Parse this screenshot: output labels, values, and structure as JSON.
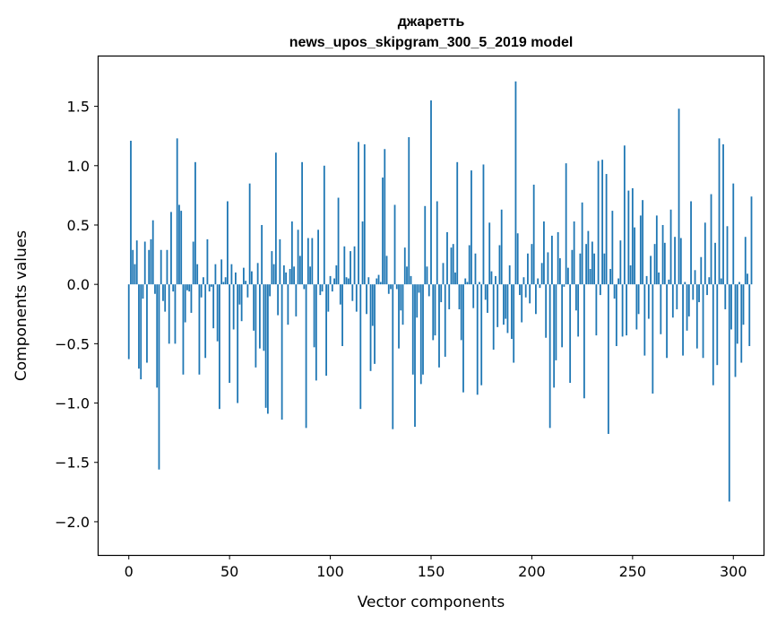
{
  "chart_data": {
    "type": "bar",
    "title_line1": "джаретть",
    "title_line2": "news_upos_skipgram_300_5_2019 model",
    "xlabel": "Vector components",
    "ylabel": "Components values",
    "xlim": [
      -15,
      315
    ],
    "ylim": [
      -2.28,
      1.92
    ],
    "xticks": [
      0,
      50,
      100,
      150,
      200,
      250,
      300
    ],
    "xtick_labels": [
      "0",
      "50",
      "100",
      "150",
      "200",
      "250",
      "300"
    ],
    "yticks": [
      -2.0,
      -1.5,
      -1.0,
      -0.5,
      0.0,
      0.5,
      1.0,
      1.5
    ],
    "ytick_labels": [
      "−2.0",
      "−1.5",
      "−1.0",
      "−0.5",
      "0.0",
      "0.5",
      "1.0",
      "1.5"
    ],
    "bar_color": "#1f77b4",
    "values": [
      -0.63,
      1.21,
      0.29,
      0.17,
      0.37,
      -0.71,
      -0.8,
      -0.12,
      0.36,
      -0.66,
      0.29,
      0.38,
      0.54,
      -0.08,
      -0.87,
      -1.56,
      0.29,
      -0.14,
      -0.23,
      0.29,
      -0.5,
      0.61,
      -0.06,
      -0.5,
      1.23,
      0.67,
      0.62,
      -0.76,
      -0.32,
      -0.05,
      -0.06,
      -0.24,
      0.36,
      1.03,
      0.17,
      -0.76,
      -0.11,
      0.06,
      -0.62,
      0.38,
      -0.06,
      -0.02,
      -0.37,
      0.17,
      -0.48,
      -1.05,
      0.21,
      0.02,
      0.06,
      0.7,
      -0.83,
      0.17,
      -0.38,
      0.1,
      -1.0,
      -0.17,
      -0.31,
      0.14,
      0.03,
      -0.11,
      0.85,
      0.11,
      -0.39,
      -0.7,
      0.18,
      -0.54,
      0.5,
      -0.56,
      -1.04,
      -1.09,
      -0.1,
      0.28,
      0.17,
      1.11,
      -0.26,
      0.38,
      -1.14,
      0.16,
      0.1,
      -0.34,
      0.13,
      0.53,
      0.15,
      -0.27,
      0.46,
      0.24,
      1.03,
      -0.04,
      -1.21,
      0.39,
      0.15,
      0.39,
      -0.53,
      -0.81,
      0.46,
      -0.09,
      -0.06,
      1.0,
      -0.77,
      -0.23,
      0.07,
      -0.06,
      0.05,
      0.16,
      0.73,
      -0.17,
      -0.52,
      0.32,
      0.06,
      0.05,
      0.28,
      -0.14,
      0.32,
      -0.23,
      1.2,
      -1.05,
      0.53,
      1.18,
      -0.25,
      0.06,
      -0.73,
      -0.35,
      -0.67,
      0.05,
      0.08,
      0.02,
      0.9,
      1.14,
      0.24,
      -0.08,
      -0.04,
      -1.22,
      0.67,
      -0.04,
      -0.54,
      -0.22,
      -0.34,
      0.31,
      0.15,
      1.24,
      0.07,
      -0.76,
      -1.2,
      -0.28,
      -0.07,
      -0.84,
      -0.76,
      0.66,
      0.15,
      -0.1,
      1.55,
      -0.47,
      -0.43,
      0.7,
      -0.7,
      -0.15,
      0.18,
      -0.61,
      0.44,
      -0.21,
      0.31,
      0.34,
      0.1,
      1.03,
      -0.21,
      -0.47,
      -0.91,
      0.05,
      0.02,
      0.33,
      0.96,
      -0.2,
      0.26,
      -0.93,
      0.02,
      -0.85,
      1.01,
      -0.13,
      -0.24,
      0.52,
      0.11,
      -0.55,
      0.07,
      -0.36,
      0.33,
      0.63,
      -0.34,
      -0.29,
      -0.41,
      0.16,
      -0.46,
      -0.66,
      1.71,
      0.43,
      -0.09,
      -0.32,
      0.06,
      -0.11,
      0.26,
      -0.16,
      0.34,
      0.84,
      -0.25,
      0.05,
      -0.03,
      0.18,
      0.53,
      -0.45,
      0.27,
      -1.21,
      0.41,
      -0.87,
      -0.64,
      0.44,
      0.22,
      -0.53,
      -0.02,
      1.02,
      0.14,
      -0.83,
      0.29,
      0.53,
      -0.22,
      -0.44,
      0.26,
      0.69,
      -0.96,
      0.34,
      0.45,
      0.13,
      0.36,
      0.26,
      -0.43,
      1.04,
      -0.09,
      1.05,
      0.26,
      0.93,
      -1.26,
      0.13,
      0.62,
      -0.12,
      -0.52,
      0.05,
      0.37,
      -0.44,
      1.17,
      -0.43,
      0.79,
      0.16,
      0.81,
      0.48,
      -0.38,
      -0.25,
      0.58,
      0.71,
      -0.6,
      0.07,
      -0.29,
      0.24,
      -0.92,
      0.34,
      0.58,
      0.1,
      -0.42,
      0.5,
      0.35,
      -0.62,
      0.04,
      0.63,
      -0.28,
      0.4,
      -0.21,
      1.48,
      0.39,
      -0.6,
      0.02,
      -0.39,
      -0.27,
      0.7,
      -0.13,
      0.12,
      -0.54,
      -0.15,
      0.23,
      -0.62,
      0.52,
      -0.09,
      0.06,
      0.76,
      -0.85,
      0.35,
      -0.68,
      1.23,
      0.05,
      1.18,
      -0.21,
      0.49,
      -1.83,
      -0.38,
      0.85,
      -0.78,
      -0.5,
      0.02,
      -0.66,
      -0.34,
      0.4,
      0.09,
      -0.52,
      0.74
    ]
  }
}
